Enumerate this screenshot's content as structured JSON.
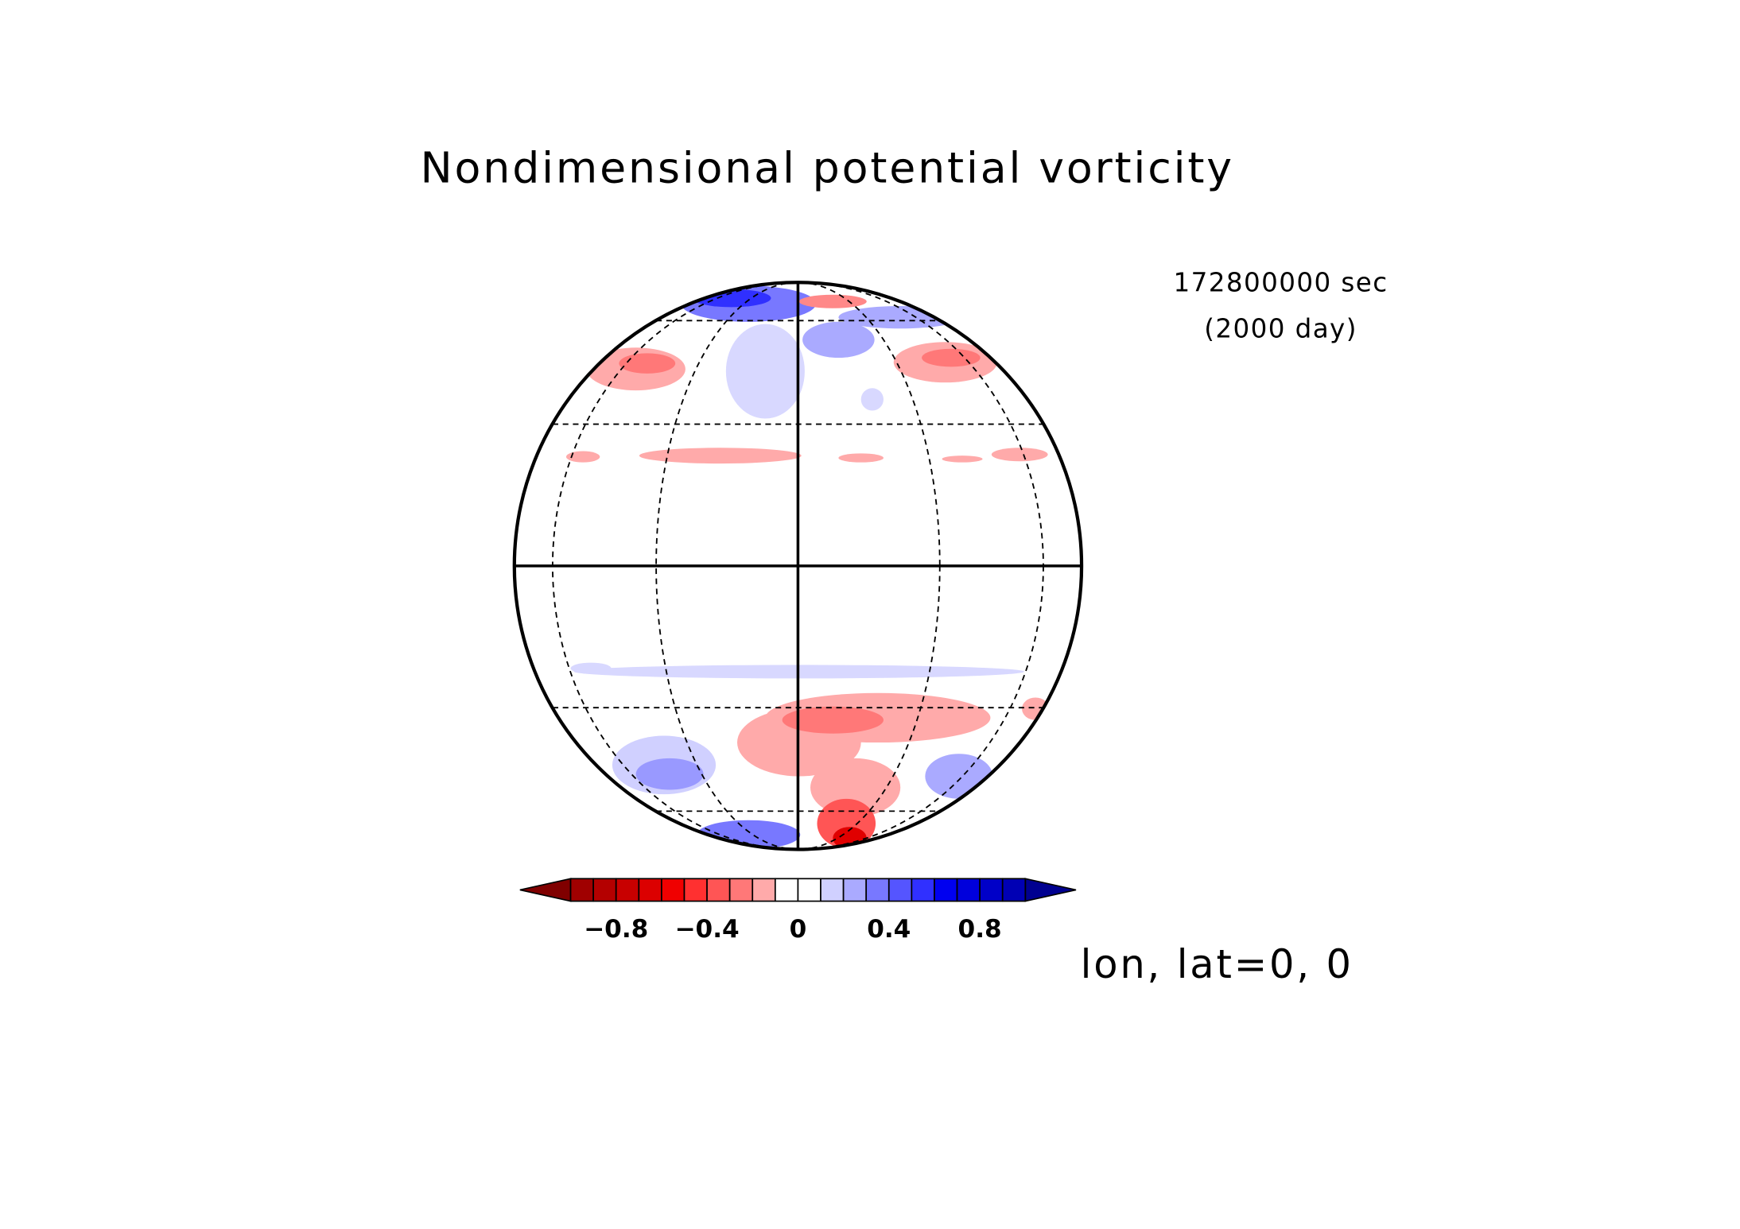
{
  "chart_data": {
    "type": "orthographic-contour",
    "title": "Nondimensional potential vorticity",
    "annotations": [
      "172800000 sec",
      "(2000 day)"
    ],
    "projection_label": "lon, lat=0, 0",
    "colorbar": {
      "lim": [
        -1,
        1
      ],
      "ticks": [
        {
          "value": -0.8,
          "label": "−0.8"
        },
        {
          "value": -0.4,
          "label": "−0.4"
        },
        0,
        0.4,
        0.8
      ],
      "under_color": "#800000",
      "over_color": "#000090",
      "colors": [
        "#a00000",
        "#b40000",
        "#c80000",
        "#dc0000",
        "#f00000",
        "#ff3030",
        "#ff5555",
        "#ff7878",
        "#ffaaaa",
        "#ffffff",
        "#ffffff",
        "#d0d0ff",
        "#aaaaff",
        "#7878ff",
        "#5555ff",
        "#3030ff",
        "#0000f0",
        "#0000dc",
        "#0000c8",
        "#0000b4"
      ]
    }
  }
}
